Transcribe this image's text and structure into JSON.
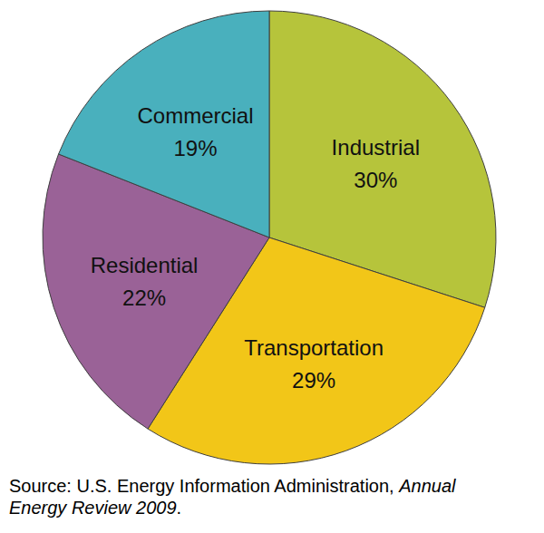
{
  "chart_data": {
    "type": "pie",
    "categories": [
      "Industrial",
      "Transportation",
      "Residential",
      "Commercial"
    ],
    "values": [
      30,
      29,
      22,
      19
    ],
    "value_labels": [
      "30%",
      "29%",
      "22%",
      "19%"
    ],
    "colors": [
      "#b6c43b",
      "#f2c618",
      "#9a6297",
      "#49b0bd"
    ],
    "data_labels": true,
    "source": [
      "Source: U.S. Energy Information Administration,",
      "Annual Energy Review 2009",
      "."
    ]
  }
}
